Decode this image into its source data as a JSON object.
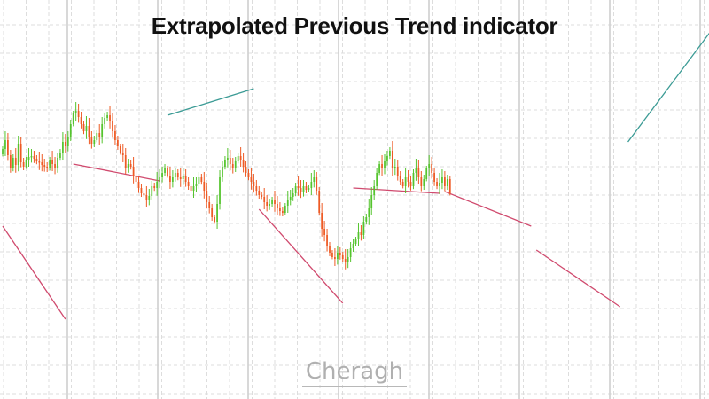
{
  "chart_data": {
    "type": "candlestick",
    "title": "Extrapolated Previous Trend indicator",
    "watermark": "Cheragh",
    "grid": true,
    "colors": {
      "bull": "#55c42e",
      "bear": "#ee5a24",
      "uptrend_line": "#3b9b95",
      "downtrend_line": "#d04a6e",
      "major_grid": "#cfcfcf",
      "minor_grid": "#dddddd"
    },
    "closes": [
      168,
      158,
      175,
      190,
      178,
      186,
      162,
      183,
      188,
      180,
      177,
      176,
      179,
      182,
      183,
      186,
      188,
      190,
      180,
      185,
      190,
      178,
      172,
      160,
      165,
      155,
      140,
      128,
      125,
      132,
      140,
      148,
      142,
      155,
      162,
      158,
      150,
      155,
      140,
      133,
      130,
      136,
      148,
      158,
      165,
      172,
      175,
      190,
      185,
      188,
      198,
      205,
      212,
      218,
      220,
      225,
      221,
      210,
      212,
      205,
      200,
      195,
      190,
      198,
      205,
      200,
      195,
      200,
      202,
      198,
      205,
      210,
      215,
      210,
      208,
      200,
      205,
      215,
      228,
      235,
      245,
      250,
      230,
      200,
      188,
      180,
      178,
      185,
      190,
      182,
      176,
      180,
      188,
      195,
      200,
      205,
      210,
      215,
      220,
      222,
      228,
      232,
      230,
      226,
      230,
      235,
      238,
      240,
      232,
      225,
      222,
      218,
      210,
      212,
      216,
      210,
      214,
      212,
      205,
      200,
      215,
      240,
      258,
      265,
      278,
      285,
      290,
      292,
      285,
      288,
      292,
      295,
      290,
      280,
      275,
      270,
      262,
      265,
      250,
      245,
      235,
      220,
      210,
      195,
      185,
      190,
      182,
      176,
      170,
      190,
      188,
      198,
      205,
      210,
      200,
      205,
      210,
      195,
      190,
      200,
      210,
      202,
      190,
      185,
      195,
      205,
      210,
      206,
      200,
      210,
      202,
      218
    ],
    "trend_lines": [
      {
        "direction": "down",
        "from": [
          0,
          255
        ],
        "to": [
          24,
          360
        ]
      },
      {
        "direction": "down",
        "from": [
          27,
          185
        ],
        "to": [
          60,
          204
        ]
      },
      {
        "direction": "up",
        "from": [
          63,
          130
        ],
        "to": [
          96,
          100
        ]
      },
      {
        "direction": "down",
        "from": [
          98,
          236
        ],
        "to": [
          130,
          342
        ]
      },
      {
        "direction": "down",
        "from": [
          134,
          212
        ],
        "to": [
          167,
          218
        ]
      },
      {
        "direction": "down",
        "from": [
          169,
          216
        ],
        "to": [
          202,
          255
        ]
      },
      {
        "direction": "down",
        "from": [
          204,
          282
        ],
        "to": [
          236,
          346
        ]
      },
      {
        "direction": "up",
        "from": [
          239,
          160
        ],
        "to": [
          272,
          30
        ]
      }
    ]
  }
}
